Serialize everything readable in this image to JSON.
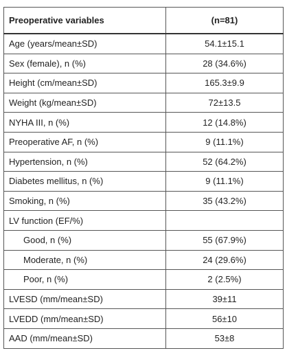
{
  "table": {
    "header": [
      "Preoperative variables",
      "(n=81)"
    ],
    "rows": [
      {
        "label": "Age (years/mean±SD)",
        "value": "54.1±15.1"
      },
      {
        "label": "Sex (female), n (%)",
        "value": "28 (34.6%)"
      },
      {
        "label": "Height (cm/mean±SD)",
        "value": "165.3±9.9"
      },
      {
        "label": "Weight (kg/mean±SD)",
        "value": "72±13.5"
      },
      {
        "label": "NYHA III, n (%)",
        "value": "12 (14.8%)"
      },
      {
        "label": "Preoperative AF, n (%)",
        "value": "9 (11.1%)"
      },
      {
        "label": "Hypertension, n (%)",
        "value": "52 (64.2%)"
      },
      {
        "label": "Diabetes mellitus, n (%)",
        "value": "9 (11.1%)"
      },
      {
        "label": "Smoking, n (%)",
        "value": "35 (43.2%)"
      },
      {
        "label": "LV function (EF/%)",
        "subrows": [
          {
            "label": "Good, n (%)",
            "value": "55 (67.9%)"
          },
          {
            "label": "Moderate, n (%)",
            "value": "24 (29.6%)"
          },
          {
            "label": "Poor, n (%)",
            "value": "2 (2.5%)"
          }
        ]
      },
      {
        "label": "LVESD (mm/mean±SD)",
        "value": "39±11"
      },
      {
        "label": "LVEDD (mm/mean±SD)",
        "value": "56±10"
      },
      {
        "label": "AAD (mm/mean±SD)",
        "value": "53±8"
      }
    ]
  }
}
